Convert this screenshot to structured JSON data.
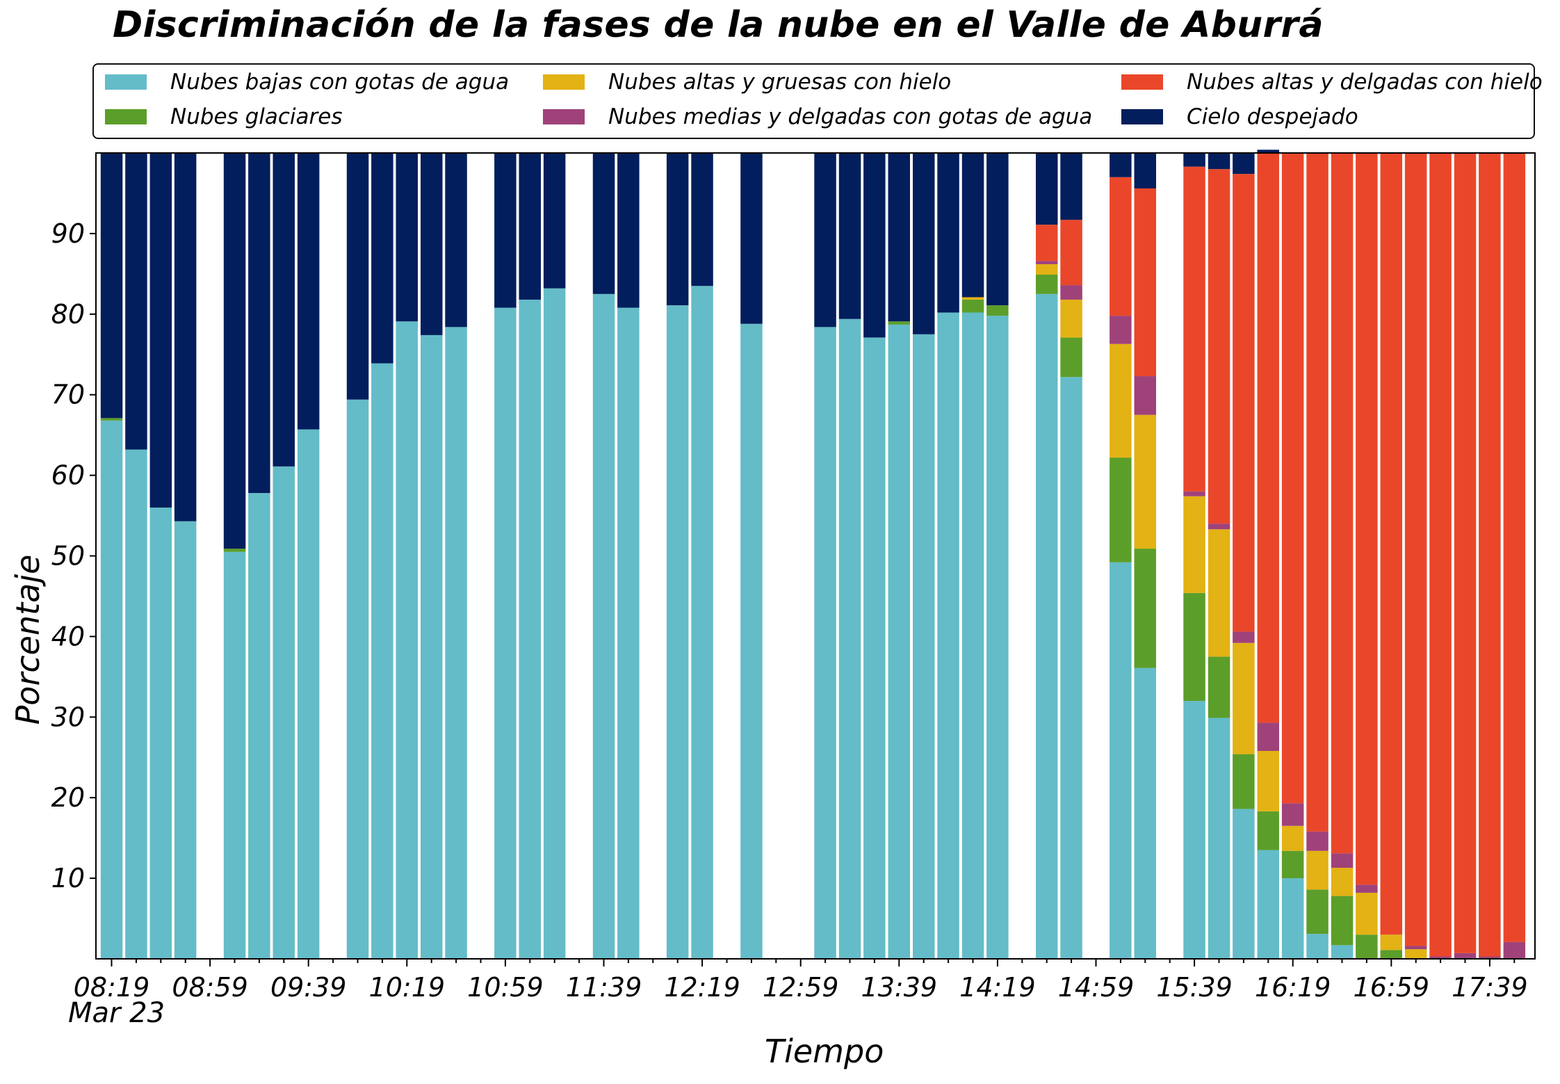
{
  "chart_data": {
    "type": "bar",
    "stacked": true,
    "title": "Discriminación de la fases de la nube en el Valle de Aburrá",
    "xlabel": "Tiempo",
    "ylabel": "Porcentaje",
    "date_label": "Mar 23",
    "ylim": [
      0,
      100
    ],
    "y_ticks": [
      10,
      20,
      30,
      40,
      50,
      60,
      70,
      80,
      90
    ],
    "x_tick_labels": [
      "08:19",
      "08:59",
      "09:39",
      "10:19",
      "10:59",
      "11:39",
      "12:19",
      "12:59",
      "13:39",
      "14:19",
      "14:59",
      "15:39",
      "16:19",
      "16:59",
      "17:39"
    ],
    "x_slots": 59,
    "legend_placement": "top",
    "grid": false,
    "series": [
      {
        "name": "Nubes bajas con gotas de agua",
        "color": "#64bcc8"
      },
      {
        "name": "Nubes glaciares",
        "color": "#5c9e2a"
      },
      {
        "name": "Nubes altas y gruesas con hielo",
        "color": "#e3b214"
      },
      {
        "name": "Nubes medias y delgadas con gotas de agua",
        "color": "#a0427a"
      },
      {
        "name": "Nubes altas y delgadas con hielo",
        "color": "#ea472a"
      },
      {
        "name": "Cielo despejado",
        "color": "#031e5c"
      }
    ],
    "bars": [
      {
        "x": "08:19",
        "values": [
          66.8,
          0.3,
          0,
          0,
          0,
          32.9
        ]
      },
      {
        "x": "08:29",
        "values": [
          63.2,
          0,
          0,
          0,
          0,
          36.8
        ]
      },
      {
        "x": "08:39",
        "values": [
          56.0,
          0,
          0,
          0,
          0,
          44.0
        ]
      },
      {
        "x": "08:49",
        "values": [
          54.3,
          0,
          0,
          0,
          0,
          45.7
        ]
      },
      {
        "x": "09:09",
        "values": [
          50.5,
          0.4,
          0,
          0,
          0,
          49.1
        ]
      },
      {
        "x": "09:19",
        "values": [
          57.8,
          0,
          0,
          0,
          0,
          42.2
        ]
      },
      {
        "x": "09:29",
        "values": [
          61.1,
          0,
          0,
          0,
          0,
          38.9
        ]
      },
      {
        "x": "09:39",
        "values": [
          65.7,
          0,
          0,
          0,
          0,
          34.3
        ]
      },
      {
        "x": "09:59",
        "values": [
          69.4,
          0,
          0,
          0,
          0,
          30.6
        ]
      },
      {
        "x": "10:09",
        "values": [
          73.9,
          0,
          0,
          0,
          0,
          26.1
        ]
      },
      {
        "x": "10:19",
        "values": [
          79.1,
          0,
          0,
          0,
          0,
          20.9
        ]
      },
      {
        "x": "10:29",
        "values": [
          77.4,
          0,
          0,
          0,
          0,
          22.6
        ]
      },
      {
        "x": "10:39",
        "values": [
          78.4,
          0,
          0,
          0,
          0,
          21.6
        ]
      },
      {
        "x": "10:59",
        "values": [
          80.8,
          0,
          0,
          0,
          0,
          19.2
        ]
      },
      {
        "x": "11:09",
        "values": [
          81.8,
          0,
          0,
          0,
          0,
          18.2
        ]
      },
      {
        "x": "11:19",
        "values": [
          83.2,
          0,
          0,
          0,
          0,
          16.8
        ]
      },
      {
        "x": "11:39",
        "values": [
          82.5,
          0,
          0,
          0,
          0,
          17.5
        ]
      },
      {
        "x": "11:49",
        "values": [
          80.8,
          0,
          0,
          0,
          0,
          19.2
        ]
      },
      {
        "x": "12:09",
        "values": [
          81.1,
          0,
          0,
          0,
          0,
          18.9
        ]
      },
      {
        "x": "12:19",
        "values": [
          83.5,
          0,
          0,
          0,
          0,
          16.5
        ]
      },
      {
        "x": "12:39",
        "values": [
          78.8,
          0,
          0,
          0,
          0,
          21.2
        ]
      },
      {
        "x": "13:09",
        "values": [
          78.4,
          0,
          0,
          0,
          0,
          21.6
        ]
      },
      {
        "x": "13:19",
        "values": [
          79.4,
          0,
          0,
          0,
          0,
          20.6
        ]
      },
      {
        "x": "13:29",
        "values": [
          77.1,
          0,
          0,
          0,
          0,
          22.9
        ]
      },
      {
        "x": "13:39",
        "values": [
          78.7,
          0.4,
          0,
          0,
          0,
          20.9
        ]
      },
      {
        "x": "13:49",
        "values": [
          77.5,
          0,
          0,
          0,
          0,
          22.5
        ]
      },
      {
        "x": "13:59",
        "values": [
          80.2,
          0,
          0,
          0,
          0,
          19.8
        ]
      },
      {
        "x": "14:09",
        "values": [
          80.2,
          1.6,
          0.3,
          0,
          0,
          17.9
        ]
      },
      {
        "x": "14:19",
        "values": [
          79.8,
          1.3,
          0,
          0,
          0,
          18.9
        ]
      },
      {
        "x": "14:39",
        "values": [
          82.5,
          2.4,
          1.3,
          0.4,
          4.5,
          8.9
        ]
      },
      {
        "x": "14:49",
        "values": [
          72.2,
          4.9,
          4.7,
          1.8,
          8.1,
          8.3
        ]
      },
      {
        "x": "15:09",
        "values": [
          49.2,
          13.0,
          14.1,
          3.5,
          17.2,
          3.0
        ]
      },
      {
        "x": "15:19",
        "values": [
          36.1,
          14.8,
          16.6,
          4.8,
          23.3,
          4.4
        ]
      },
      {
        "x": "15:39",
        "values": [
          32.0,
          13.4,
          12.0,
          0.6,
          40.3,
          1.7
        ]
      },
      {
        "x": "15:49",
        "values": [
          29.9,
          7.6,
          15.8,
          0.7,
          44.0,
          2.0
        ]
      },
      {
        "x": "15:59",
        "values": [
          18.6,
          6.8,
          13.8,
          1.4,
          56.8,
          2.6
        ]
      },
      {
        "x": "16:09",
        "values": [
          13.5,
          4.8,
          7.5,
          3.5,
          70.7,
          0.4
        ]
      },
      {
        "x": "16:19",
        "values": [
          10.0,
          3.4,
          3.1,
          2.8,
          80.7,
          0
        ]
      },
      {
        "x": "16:29",
        "values": [
          3.1,
          5.5,
          4.8,
          2.4,
          84.2,
          0
        ]
      },
      {
        "x": "16:39",
        "values": [
          1.7,
          6.1,
          3.5,
          1.8,
          86.9,
          0
        ]
      },
      {
        "x": "16:49",
        "values": [
          0,
          3.0,
          5.2,
          1.0,
          90.8,
          0
        ]
      },
      {
        "x": "16:59",
        "values": [
          0,
          1.1,
          1.9,
          0,
          97.0,
          0
        ]
      },
      {
        "x": "17:09",
        "values": [
          0,
          0,
          1.2,
          0.4,
          98.4,
          0
        ]
      },
      {
        "x": "17:19",
        "values": [
          0,
          0,
          0,
          0.3,
          99.7,
          0
        ]
      },
      {
        "x": "17:29",
        "values": [
          0,
          0,
          0,
          0.7,
          99.3,
          0
        ]
      },
      {
        "x": "17:39",
        "values": [
          0,
          0,
          0,
          0.3,
          99.7,
          0
        ]
      },
      {
        "x": "17:49",
        "values": [
          0,
          0,
          0,
          2.1,
          97.9,
          0
        ]
      }
    ]
  }
}
